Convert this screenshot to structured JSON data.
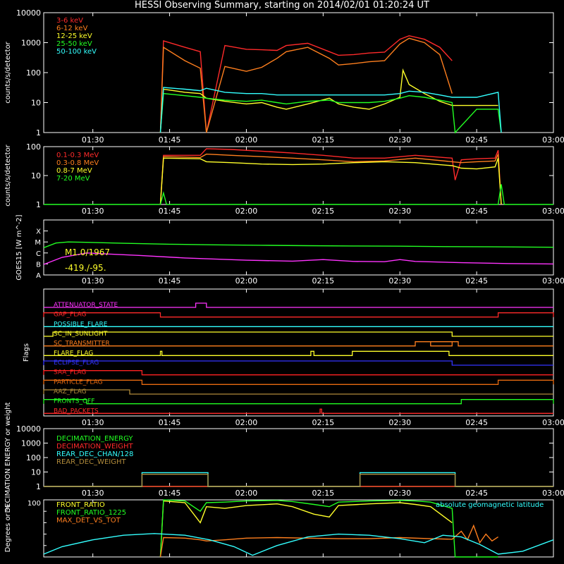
{
  "title": "HESSI Observing Summary, starting on 2014/02/01 01:20:24 UT",
  "colors": {
    "black": "#000000",
    "white": "#ffffff",
    "red": "#ff2a2a",
    "orange": "#ff7f1e",
    "yellow": "#ffff2a",
    "green": "#22ff22",
    "cyan": "#33ffff",
    "magenta": "#ff33ff",
    "blue": "#3333ff",
    "brown": "#b08a3a",
    "darkorange": "#e86a10",
    "flagred": "#ff2222"
  },
  "time_axis": {
    "start_hour": 1.34,
    "end_hour": 3.0,
    "tick_hours": [
      1.5,
      1.75,
      2.0,
      2.25,
      2.5,
      2.75,
      3.0
    ],
    "tick_labels": [
      "01:30",
      "01:45",
      "02:00",
      "02:15",
      "02:30",
      "02:45",
      "03:00"
    ]
  },
  "chart_data": [
    {
      "id": "lightcurves_low",
      "type": "line",
      "ylabel": "counts/s/detector",
      "yscale": "log",
      "ylim": [
        1,
        10000
      ],
      "ytick_labels": [
        "1",
        "10",
        "100",
        "1000",
        "10000"
      ],
      "ytick_values": [
        1,
        10,
        100,
        1000,
        10000
      ],
      "series": [
        {
          "name": "3-6 keV",
          "color": "red",
          "x": [
            1.72,
            1.73,
            1.8,
            1.85,
            1.87,
            1.93,
            2.0,
            2.05,
            2.1,
            2.13,
            2.2,
            2.27,
            2.3,
            2.35,
            2.4,
            2.45,
            2.5,
            2.53,
            2.58,
            2.63,
            2.67
          ],
          "y": [
            1,
            1150,
            700,
            500,
            1,
            800,
            600,
            580,
            550,
            800,
            950,
            500,
            380,
            400,
            450,
            480,
            1300,
            1700,
            1300,
            700,
            250
          ]
        },
        {
          "name": "6-12 keV",
          "color": "orange",
          "x": [
            1.72,
            1.73,
            1.8,
            1.85,
            1.87,
            1.93,
            2.0,
            2.05,
            2.1,
            2.13,
            2.2,
            2.27,
            2.3,
            2.35,
            2.4,
            2.45,
            2.5,
            2.53,
            2.58,
            2.63,
            2.67
          ],
          "y": [
            1,
            700,
            250,
            140,
            1,
            160,
            110,
            150,
            300,
            500,
            700,
            300,
            180,
            200,
            230,
            250,
            900,
            1400,
            1000,
            400,
            20
          ]
        },
        {
          "name": "12-25 keV",
          "color": "yellow",
          "x": [
            1.72,
            1.73,
            1.8,
            1.85,
            1.87,
            1.93,
            2.0,
            2.05,
            2.1,
            2.13,
            2.2,
            2.27,
            2.3,
            2.35,
            2.4,
            2.45,
            2.5,
            2.51,
            2.53,
            2.58,
            2.63,
            2.67,
            2.7,
            2.75,
            2.82
          ],
          "y": [
            1,
            28,
            22,
            20,
            14,
            11,
            9,
            10,
            7,
            6,
            9,
            14,
            9,
            7,
            6,
            9,
            15,
            120,
            40,
            20,
            11,
            8,
            8,
            8,
            8
          ]
        },
        {
          "name": "25-50 keV",
          "color": "green",
          "x": [
            1.72,
            1.73,
            1.8,
            1.85,
            1.87,
            1.93,
            2.0,
            2.05,
            2.1,
            2.13,
            2.2,
            2.27,
            2.3,
            2.35,
            2.4,
            2.45,
            2.5,
            2.53,
            2.58,
            2.63,
            2.67,
            2.68,
            2.75,
            2.82,
            2.83
          ],
          "y": [
            1,
            20,
            17,
            15,
            14,
            12,
            11,
            12,
            10,
            9,
            11,
            12,
            10,
            10,
            10,
            11,
            14,
            17,
            15,
            12,
            10,
            1,
            6,
            6,
            1
          ]
        },
        {
          "name": "50-100 keV",
          "color": "cyan",
          "x": [
            1.72,
            1.73,
            1.8,
            1.85,
            1.87,
            1.93,
            2.0,
            2.05,
            2.1,
            2.13,
            2.2,
            2.27,
            2.3,
            2.35,
            2.4,
            2.45,
            2.5,
            2.53,
            2.58,
            2.63,
            2.67,
            2.68,
            2.75,
            2.82,
            2.83
          ],
          "y": [
            1,
            32,
            28,
            25,
            30,
            22,
            20,
            20,
            18,
            18,
            18,
            18,
            18,
            18,
            18,
            18,
            20,
            24,
            22,
            18,
            15,
            15,
            15,
            22,
            1
          ]
        }
      ]
    },
    {
      "id": "lightcurves_high",
      "type": "line",
      "ylabel": "counts/s/detector",
      "yscale": "log",
      "ylim": [
        1,
        100
      ],
      "ytick_labels": [
        "1",
        "10",
        "100"
      ],
      "ytick_values": [
        1,
        10,
        100
      ],
      "series": [
        {
          "name": "0.1-0.3 MeV",
          "color": "red",
          "x": [
            1.72,
            1.73,
            1.85,
            1.87,
            1.95,
            2.05,
            2.15,
            2.25,
            2.35,
            2.45,
            2.55,
            2.67,
            2.68,
            2.7,
            2.75,
            2.81,
            2.82,
            2.83
          ],
          "y": [
            1,
            50,
            50,
            85,
            80,
            70,
            60,
            50,
            40,
            40,
            50,
            40,
            7,
            35,
            38,
            40,
            75,
            1
          ]
        },
        {
          "name": "0.3-0.8 MeV",
          "color": "orange",
          "x": [
            1.72,
            1.73,
            1.85,
            1.87,
            1.95,
            2.05,
            2.15,
            2.25,
            2.35,
            2.45,
            2.55,
            2.67,
            2.7,
            2.75,
            2.81,
            2.82,
            2.83
          ],
          "y": [
            1,
            45,
            42,
            55,
            50,
            45,
            40,
            35,
            30,
            32,
            40,
            30,
            28,
            30,
            32,
            55,
            1
          ]
        },
        {
          "name": "0.8-7 MeV",
          "color": "yellow",
          "x": [
            1.72,
            1.73,
            1.85,
            1.87,
            1.95,
            2.05,
            2.15,
            2.25,
            2.35,
            2.45,
            2.55,
            2.67,
            2.7,
            2.75,
            2.81,
            2.82,
            2.83
          ],
          "y": [
            1,
            40,
            38,
            30,
            28,
            25,
            24,
            25,
            28,
            30,
            28,
            22,
            18,
            17,
            20,
            40,
            1
          ]
        },
        {
          "name": "7-20 MeV",
          "color": "green",
          "x": [
            1.34,
            1.72,
            1.73,
            1.74,
            1.8,
            2.82,
            2.83,
            2.84,
            3.0
          ],
          "y": [
            1,
            1,
            2.5,
            1,
            1,
            1,
            5,
            1,
            1
          ]
        }
      ]
    },
    {
      "id": "goes",
      "type": "line",
      "ylabel": "GOES15 [W m^-2]",
      "yscale": "log",
      "ylim": [
        1e-08,
        0.001
      ],
      "ytick_labels": [
        "A",
        "B",
        "C",
        "M",
        "X"
      ],
      "ytick_values": [
        1e-08,
        1e-07,
        1e-06,
        1e-05,
        0.0001
      ],
      "annotations": [
        "M1.0/1967",
        "-419./-95."
      ],
      "series": [
        {
          "name": "",
          "color": "green",
          "x": [
            1.34,
            1.38,
            1.42,
            1.5,
            1.6,
            1.75,
            1.9,
            2.05,
            2.2,
            2.35,
            2.5,
            2.65,
            2.8,
            3.0
          ],
          "y": [
            3e-06,
            8e-06,
            1e-05,
            9e-06,
            7.5e-06,
            6.2e-06,
            5.5e-06,
            5e-06,
            4.6e-06,
            4.3e-06,
            4.1e-06,
            3.8e-06,
            3.6e-06,
            3.3e-06
          ]
        },
        {
          "name": "",
          "color": "magenta",
          "x": [
            1.34,
            1.4,
            1.48,
            1.55,
            1.65,
            1.8,
            2.0,
            2.15,
            2.25,
            2.35,
            2.45,
            2.5,
            2.55,
            2.7,
            2.85,
            3.0
          ],
          "y": [
            9e-08,
            4e-07,
            1e-06,
            8e-07,
            6e-07,
            3.5e-07,
            2.2e-07,
            1.8e-07,
            2.5e-07,
            1.7e-07,
            1.6e-07,
            2.5e-07,
            1.7e-07,
            1.3e-07,
            1.1e-07,
            1e-07
          ]
        }
      ]
    },
    {
      "id": "flags",
      "type": "line",
      "ylabel": "Flags",
      "flags": [
        {
          "name": "ATTENUATOR_STATE",
          "color": "magenta",
          "on": [
            [
              1.835,
              1.87
            ]
          ]
        },
        {
          "name": "GAP_FLAG",
          "color": "red",
          "on": [
            [
              1.34,
              1.72
            ],
            [
              2.82,
              3.0
            ]
          ]
        },
        {
          "name": "POSSIBLE_FLARE",
          "color": "cyan",
          "on": []
        },
        {
          "name": "SC_IN_SUNLIGHT",
          "color": "yellow",
          "on": [
            [
              1.37,
              2.67
            ]
          ]
        },
        {
          "name": "SC_TRANSMITTER",
          "color": "orange",
          "on": [
            [
              2.55,
              2.67
            ],
            [
              2.6,
              2.69
            ]
          ]
        },
        {
          "name": "FLARE_FLAG",
          "color": "yellow",
          "on": [
            [
              1.72,
              1.725
            ],
            [
              2.21,
              2.22
            ],
            [
              2.345,
              2.66
            ]
          ]
        },
        {
          "name": "ECLIPSE_FLAG",
          "color": "blue",
          "on": [
            [
              1.34,
              2.67
            ]
          ]
        },
        {
          "name": "SAA_FLAG",
          "color": "flagred",
          "on": [
            [
              1.34,
              1.66
            ]
          ]
        },
        {
          "name": "PARTICLE_FLAG",
          "color": "darkorange",
          "on": [
            [
              1.34,
              1.66
            ],
            [
              2.82,
              3.0
            ]
          ]
        },
        {
          "name": "AAZ_FLAG",
          "color": "brown",
          "on": [
            [
              1.34,
              1.62
            ]
          ]
        },
        {
          "name": "FRONTS_OFF",
          "color": "green",
          "on": [
            [
              1.34,
              1.48
            ],
            [
              2.7,
              3.0
            ]
          ]
        },
        {
          "name": "BAD_PACKETS",
          "color": "red",
          "on": [
            [
              2.24,
              2.245
            ]
          ]
        }
      ]
    },
    {
      "id": "decimation",
      "type": "line",
      "ylabel": "DECIMATION ENERGY or weight",
      "yscale": "log",
      "ylim": [
        1,
        10000
      ],
      "ytick_labels": [
        "1",
        "10",
        "100",
        "1000",
        "10000"
      ],
      "ytick_values": [
        1,
        10,
        100,
        1000,
        10000
      ],
      "series": [
        {
          "name": "DECIMATION_ENERGY",
          "color": "green",
          "x": [
            1.34,
            3.0
          ],
          "y": [
            1,
            1
          ]
        },
        {
          "name": "DECIMATION_WEIGHT",
          "color": "red",
          "x": [
            1.34,
            3.0
          ],
          "y": [
            1,
            1
          ]
        },
        {
          "name": "REAR_DEC_CHAN/128",
          "color": "cyan",
          "x": [
            1.34,
            1.66,
            1.66,
            1.875,
            1.875,
            2.37,
            2.37,
            2.68,
            2.68,
            3.0
          ],
          "y": [
            1,
            1,
            9,
            9,
            1,
            1,
            9,
            9,
            1,
            1
          ]
        },
        {
          "name": "REAR_DEC_WEIGHT",
          "color": "brown",
          "x": [
            1.34,
            1.66,
            1.66,
            1.875,
            1.875,
            2.37,
            2.37,
            2.68,
            2.68,
            3.0
          ],
          "y": [
            1,
            1,
            7,
            7,
            1,
            1,
            7,
            7,
            1,
            1
          ]
        }
      ]
    },
    {
      "id": "ratios",
      "type": "line",
      "ylabel": "Degrees or %",
      "ylim": [
        0,
        100
      ],
      "series": [
        {
          "name": "FRONT_RATIO",
          "color": "yellow",
          "x": [
            1.72,
            1.73,
            1.8,
            1.85,
            1.87,
            1.93,
            2.0,
            2.1,
            2.15,
            2.22,
            2.27,
            2.3,
            2.4,
            2.5,
            2.55,
            2.6,
            2.67
          ],
          "y": [
            0,
            98,
            95,
            60,
            88,
            85,
            90,
            93,
            88,
            75,
            70,
            90,
            93,
            95,
            92,
            88,
            60
          ]
        },
        {
          "name": "FRONT_RATIO_1225",
          "color": "green",
          "x": [
            1.72,
            1.73,
            1.8,
            1.85,
            1.87,
            1.93,
            2.0,
            2.1,
            2.15,
            2.22,
            2.27,
            2.3,
            2.4,
            2.5,
            2.55,
            2.6,
            2.67,
            2.68,
            2.82
          ],
          "y": [
            0,
            100,
            98,
            80,
            95,
            96,
            98,
            99,
            97,
            92,
            88,
            96,
            98,
            99,
            98,
            96,
            85,
            0,
            0
          ]
        },
        {
          "name": "MAX_DET_VS_TOT",
          "color": "orange",
          "x": [
            1.72,
            1.73,
            1.8,
            1.85,
            1.87,
            1.93,
            2.0,
            2.1,
            2.2,
            2.3,
            2.4,
            2.5,
            2.6,
            2.67,
            2.7,
            2.72,
            2.74,
            2.76,
            2.78,
            2.8,
            2.82
          ],
          "y": [
            0,
            34,
            33,
            30,
            28,
            30,
            33,
            34,
            33,
            32,
            32,
            34,
            32,
            31,
            45,
            30,
            55,
            25,
            40,
            28,
            35
          ]
        },
        {
          "name": "absolute geomagnetic latitude",
          "color": "cyan",
          "x": [
            1.34,
            1.4,
            1.5,
            1.6,
            1.7,
            1.8,
            1.88,
            1.96,
            2.02,
            2.1,
            2.2,
            2.3,
            2.4,
            2.5,
            2.58,
            2.64,
            2.7,
            2.76,
            2.82,
            2.9,
            3.0
          ],
          "y": [
            5,
            18,
            30,
            38,
            41,
            38,
            30,
            18,
            3,
            20,
            35,
            40,
            38,
            32,
            25,
            38,
            35,
            22,
            5,
            10,
            30
          ]
        }
      ]
    }
  ]
}
